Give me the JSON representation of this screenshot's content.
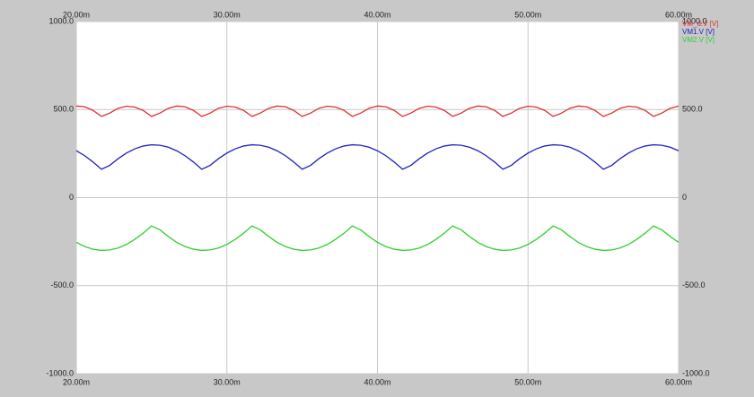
{
  "chart_data": {
    "type": "line",
    "x": [
      20,
      20.56,
      21.11,
      21.67,
      22.22,
      22.78,
      23.33,
      23.89,
      24.44,
      25,
      25.56,
      26.11,
      26.67,
      27.22,
      27.78,
      28.33,
      28.89,
      29.44,
      30,
      30.56,
      31.11,
      31.67,
      32.22,
      32.78,
      33.33,
      33.89,
      34.44,
      35,
      35.56,
      36.11,
      36.67,
      37.22,
      37.78,
      38.33,
      38.89,
      39.44,
      40,
      40.56,
      41.11,
      41.67,
      42.22,
      42.78,
      43.33,
      43.89,
      44.44,
      45,
      45.56,
      46.11,
      46.67,
      47.22,
      47.78,
      48.33,
      48.89,
      49.44,
      50,
      50.56,
      51.11,
      51.67,
      52.22,
      52.78,
      53.33,
      53.89,
      54.44,
      55,
      55.56,
      56.11,
      56.67,
      57.22,
      57.78,
      58.33,
      58.89,
      59.44,
      60
    ],
    "series": [
      {
        "name": "VM_d.V [V]",
        "color": "#e03030",
        "values": [
          520,
          516,
          495,
          461,
          480,
          507,
          519,
          514,
          495,
          461,
          480,
          507,
          520,
          516,
          495,
          461,
          480,
          507,
          519,
          514,
          495,
          461,
          480,
          507,
          520,
          516,
          495,
          461,
          480,
          507,
          519,
          514,
          495,
          461,
          480,
          507,
          520,
          516,
          495,
          461,
          480,
          507,
          519,
          514,
          495,
          461,
          480,
          507,
          520,
          516,
          495,
          461,
          480,
          507,
          519,
          514,
          495,
          461,
          480,
          507,
          520,
          516,
          495,
          461,
          480,
          507,
          519,
          514,
          495,
          461,
          480,
          507,
          520
        ]
      },
      {
        "name": "VM1.V [V]",
        "color": "#2020c0",
        "values": [
          266,
          238,
          202,
          161,
          183,
          221,
          253,
          277,
          293,
          300,
          297,
          286,
          266,
          238,
          202,
          161,
          183,
          221,
          253,
          277,
          293,
          300,
          297,
          286,
          266,
          238,
          202,
          161,
          183,
          221,
          253,
          277,
          293,
          300,
          297,
          286,
          266,
          238,
          202,
          161,
          183,
          221,
          253,
          277,
          293,
          300,
          297,
          286,
          266,
          238,
          202,
          161,
          183,
          221,
          253,
          277,
          293,
          300,
          297,
          286,
          266,
          238,
          202,
          161,
          183,
          221,
          253,
          277,
          293,
          300,
          297,
          286,
          266
        ]
      },
      {
        "name": "VM2.V [V]",
        "color": "#30d030",
        "values": [
          -254,
          -278,
          -293,
          -300,
          -297,
          -286,
          -266,
          -237,
          -202,
          -161,
          -183,
          -221,
          -254,
          -278,
          -293,
          -300,
          -297,
          -286,
          -266,
          -237,
          -202,
          -161,
          -183,
          -221,
          -254,
          -278,
          -293,
          -300,
          -297,
          -286,
          -266,
          -237,
          -202,
          -161,
          -183,
          -221,
          -254,
          -278,
          -293,
          -300,
          -297,
          -286,
          -266,
          -237,
          -202,
          -161,
          -183,
          -221,
          -254,
          -278,
          -293,
          -300,
          -297,
          -286,
          -266,
          -237,
          -202,
          -161,
          -183,
          -221,
          -254,
          -278,
          -293,
          -300,
          -297,
          -286,
          -266,
          -237,
          -202,
          -161,
          -183,
          -221,
          -254
        ]
      }
    ],
    "xlim": [
      20,
      60
    ],
    "xticks": [
      {
        "value": 20,
        "label": "20.00m"
      },
      {
        "value": 30,
        "label": "30.00m"
      },
      {
        "value": 40,
        "label": "40.00m"
      },
      {
        "value": 50,
        "label": "50.00m"
      },
      {
        "value": 60,
        "label": "60.00m"
      }
    ],
    "ylim": [
      -1000,
      1000
    ],
    "yticks": [
      {
        "value": -1000,
        "label": "-1000.0"
      },
      {
        "value": -500,
        "label": "-500.0"
      },
      0,
      {
        "value": 500,
        "label": "500.0"
      },
      {
        "value": 1000,
        "label": "1000.0"
      }
    ],
    "grid": true
  }
}
